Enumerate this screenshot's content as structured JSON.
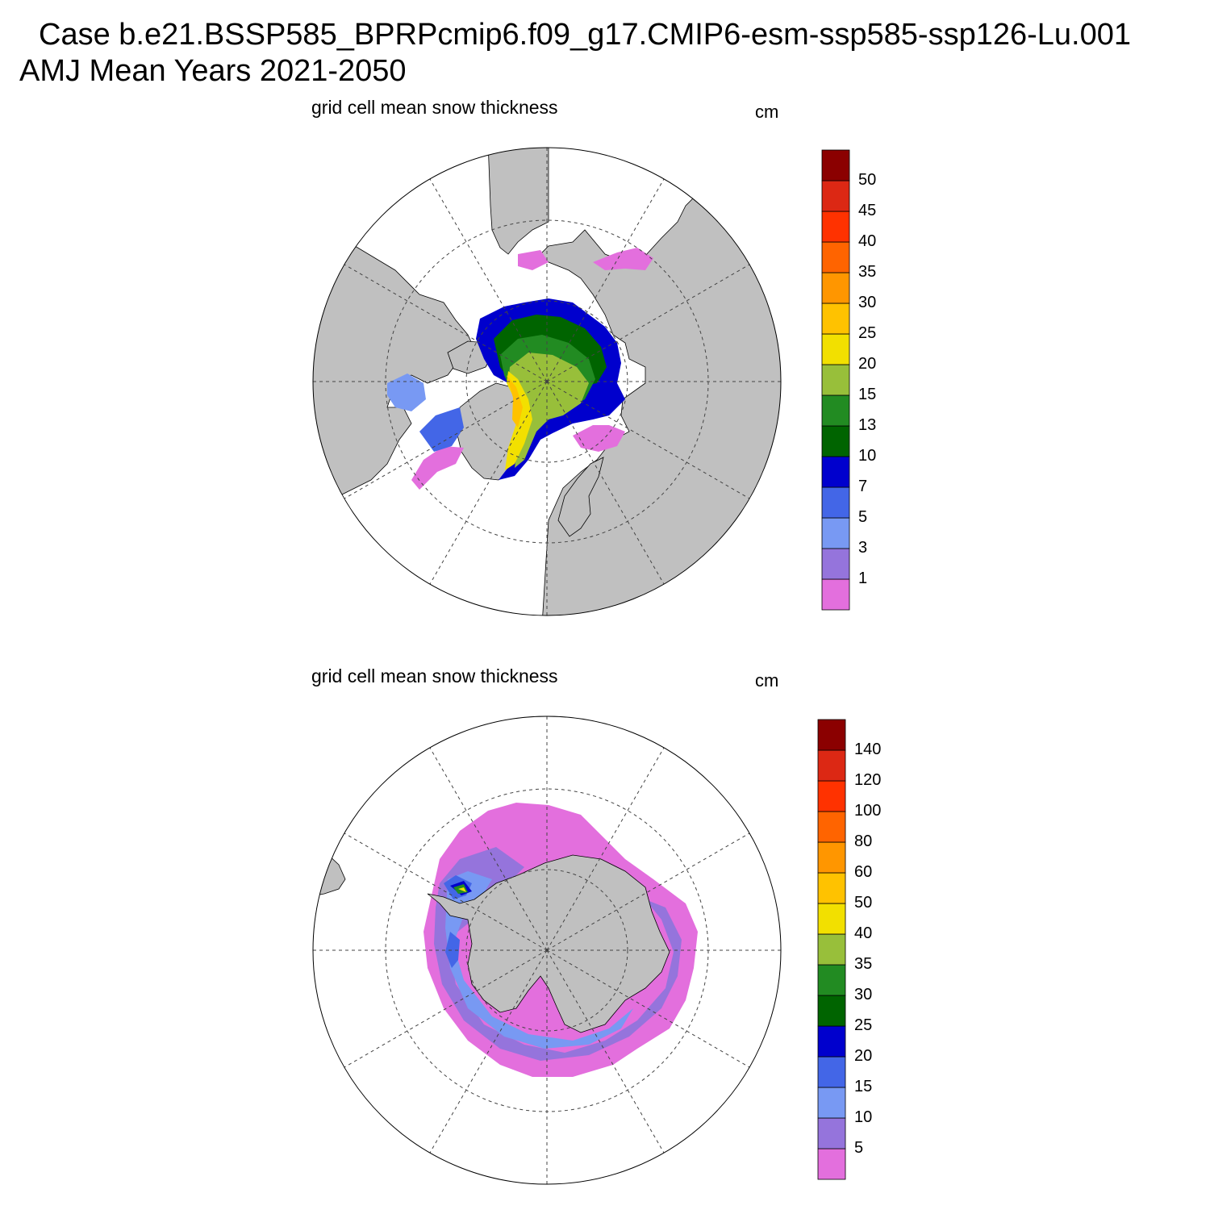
{
  "header": {
    "case_line": "Case b.e21.BSSP585_BPRPcmip6.f09_g17.CMIP6-esm-ssp585-ssp126-Lu.001",
    "period_line": "AMJ Mean   Years 2021-2050"
  },
  "panels": [
    {
      "hemisphere": "north",
      "title": "grid cell mean snow thickness",
      "units": "cm",
      "colorbar": {
        "colors": [
          "#e36fdd",
          "#9574dc",
          "#7899f3",
          "#4366e7",
          "#0000cd",
          "#006400",
          "#228b22",
          "#98bf3a",
          "#f2e000",
          "#ffc200",
          "#ff9600",
          "#ff6400",
          "#ff3200",
          "#dc2814",
          "#8b0000"
        ],
        "labels": [
          "1",
          "3",
          "5",
          "7",
          "10",
          "13",
          "15",
          "20",
          "25",
          "30",
          "35",
          "40",
          "45",
          "50"
        ]
      }
    },
    {
      "hemisphere": "south",
      "title": "grid cell mean snow thickness",
      "units": "cm",
      "colorbar": {
        "colors": [
          "#e36fdd",
          "#9574dc",
          "#7899f3",
          "#4366e7",
          "#0000cd",
          "#006400",
          "#228b22",
          "#98bf3a",
          "#f2e000",
          "#ffc200",
          "#ff9600",
          "#ff6400",
          "#ff3200",
          "#dc2814",
          "#8b0000"
        ],
        "labels": [
          "5",
          "10",
          "15",
          "20",
          "25",
          "30",
          "35",
          "40",
          "50",
          "60",
          "80",
          "100",
          "120",
          "140"
        ]
      }
    }
  ],
  "colors": {
    "land": "#c0c0c0",
    "coast": "#000000",
    "grid": "#444444"
  }
}
